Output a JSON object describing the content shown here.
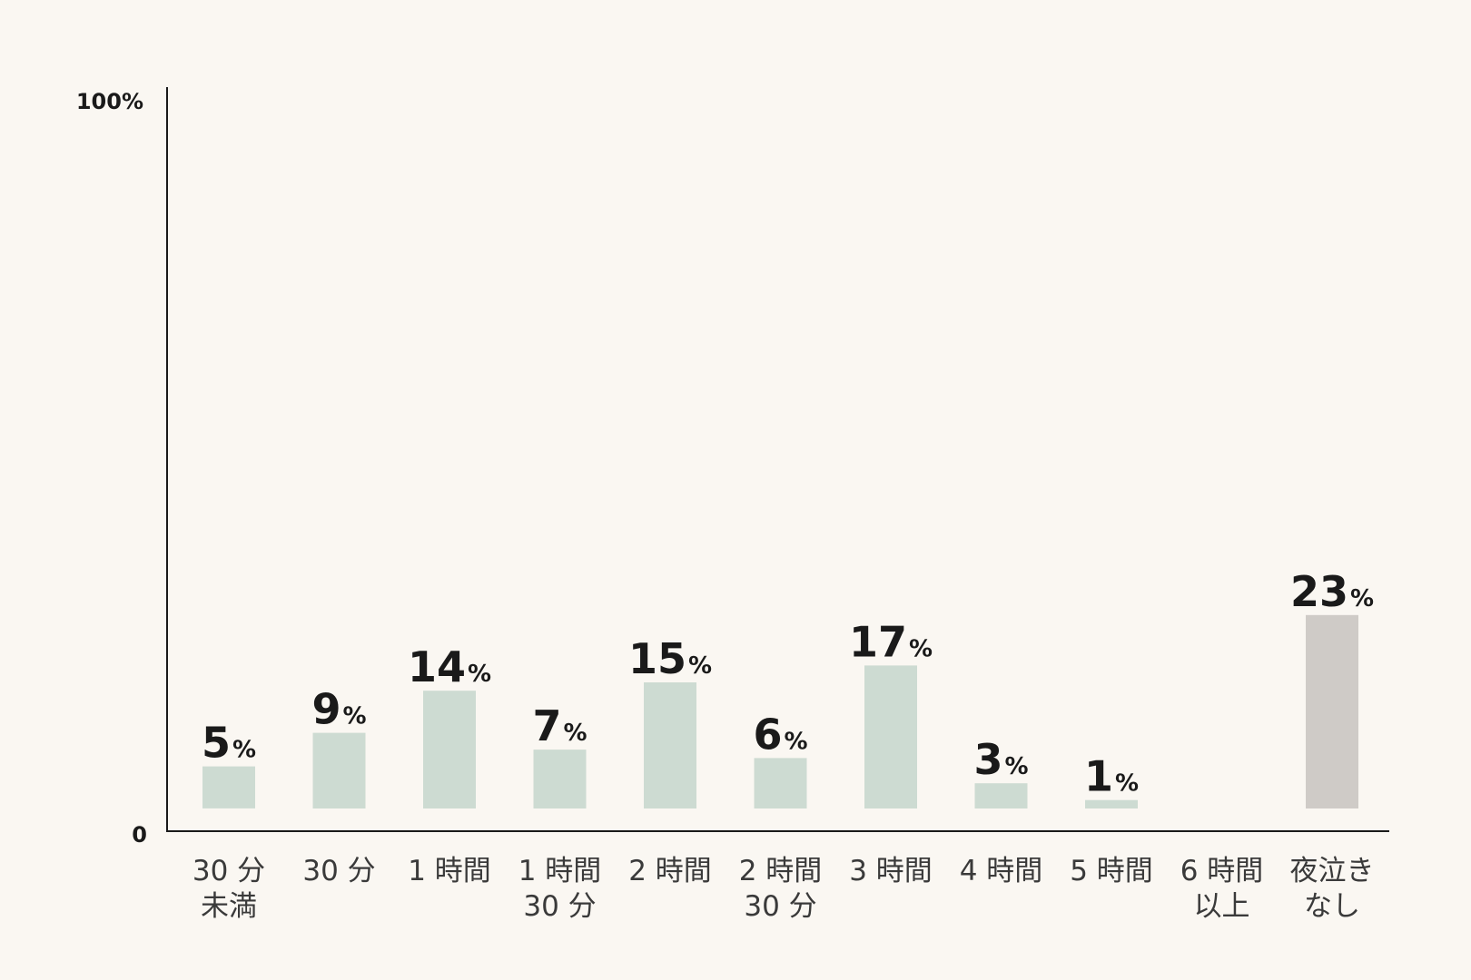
{
  "chart_data": {
    "type": "bar",
    "categories": [
      [
        "30 分",
        "未満"
      ],
      [
        "30 分"
      ],
      [
        "1 時間"
      ],
      [
        "1 時間",
        "30 分"
      ],
      [
        "2 時間"
      ],
      [
        "2 時間",
        "30 分"
      ],
      [
        "3 時間"
      ],
      [
        "4 時間"
      ],
      [
        "5 時間"
      ],
      [
        "6 時間",
        "以上"
      ],
      [
        "夜泣き",
        "なし"
      ]
    ],
    "values": [
      5,
      9,
      14,
      7,
      15,
      6,
      17,
      3,
      1,
      null,
      23
    ],
    "value_labels": [
      "5",
      "9",
      "14",
      "7",
      "15",
      "6",
      "17",
      "3",
      "1",
      "",
      "23"
    ],
    "unit": "%",
    "ylim": [
      0,
      100
    ],
    "y_tick_labels": [
      "0",
      "100%"
    ],
    "title": "",
    "xlabel": "",
    "ylabel": "",
    "grid": false,
    "colors": {
      "bar": "#cddbd2",
      "highlight_bar": "#cfcbc7",
      "axis": "#1a1a1a",
      "background": "#faf7f2"
    },
    "highlight_index": 10
  }
}
